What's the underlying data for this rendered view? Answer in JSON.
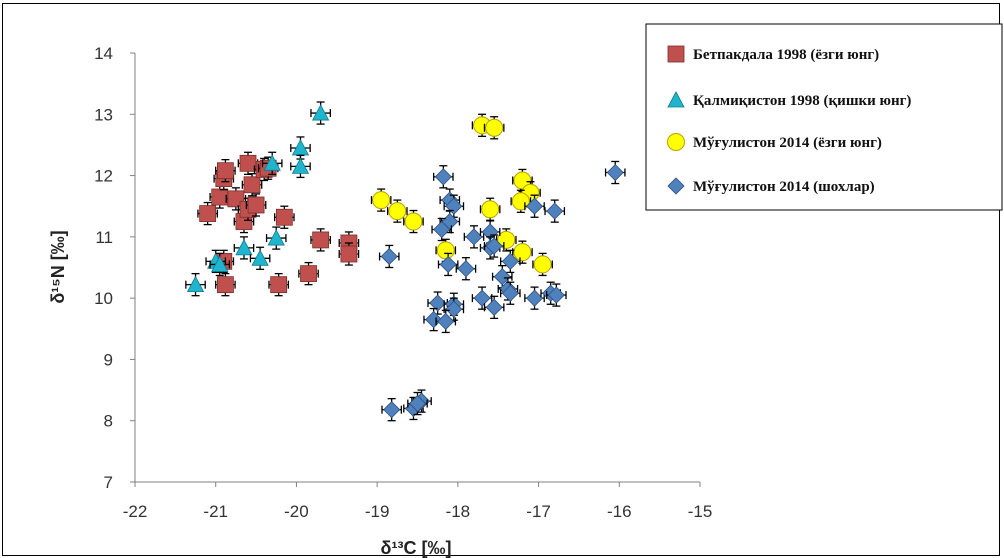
{
  "chart_data": {
    "type": "scatter",
    "xlabel": "δ¹³C [‰]",
    "ylabel": "δ¹⁵N [‰]",
    "xlim": [
      -22,
      -15
    ],
    "ylim": [
      7,
      14
    ],
    "xticks": [
      -22,
      -21,
      -20,
      -19,
      -18,
      -17,
      -16,
      -15
    ],
    "yticks": [
      7,
      8,
      9,
      10,
      11,
      12,
      13,
      14
    ],
    "grid": false,
    "legend": "top-right",
    "error_bars": true,
    "series": [
      {
        "name": "Бетпакдала 1998 (ёзги юнг)",
        "marker": "square",
        "color": "#C0504D",
        "points": [
          [
            -21.1,
            11.38
          ],
          [
            -20.95,
            11.65
          ],
          [
            -20.9,
            11.95
          ],
          [
            -20.88,
            12.08
          ],
          [
            -20.75,
            11.62
          ],
          [
            -20.65,
            11.25
          ],
          [
            -20.6,
            11.45
          ],
          [
            -20.6,
            12.2
          ],
          [
            -20.55,
            11.85
          ],
          [
            -20.5,
            11.52
          ],
          [
            -20.4,
            12.1
          ],
          [
            -20.35,
            12.12
          ],
          [
            -20.15,
            11.32
          ],
          [
            -20.9,
            10.6
          ],
          [
            -20.88,
            10.22
          ],
          [
            -20.22,
            10.22
          ],
          [
            -19.85,
            10.4
          ],
          [
            -19.7,
            10.95
          ],
          [
            -19.35,
            10.9
          ],
          [
            -19.35,
            10.72
          ]
        ]
      },
      {
        "name": "Қалмиқистон 1998 (қишки юнг)",
        "marker": "triangle",
        "color": "#1FB5CF",
        "points": [
          [
            -21.25,
            10.22
          ],
          [
            -21.0,
            10.6
          ],
          [
            -20.95,
            10.55
          ],
          [
            -20.65,
            10.82
          ],
          [
            -20.45,
            10.65
          ],
          [
            -20.25,
            10.98
          ],
          [
            -20.3,
            12.2
          ],
          [
            -19.95,
            12.45
          ],
          [
            -19.95,
            12.15
          ],
          [
            -19.7,
            13.02
          ]
        ]
      },
      {
        "name": "Мўғулистон 2014 (ёзги юнг)",
        "marker": "circle",
        "color": "#FFFF00",
        "points": [
          [
            -18.95,
            11.6
          ],
          [
            -18.75,
            11.42
          ],
          [
            -18.55,
            11.25
          ],
          [
            -18.15,
            10.78
          ],
          [
            -17.7,
            12.82
          ],
          [
            -17.55,
            12.78
          ],
          [
            -17.6,
            11.45
          ],
          [
            -17.4,
            10.95
          ],
          [
            -17.2,
            10.75
          ],
          [
            -17.2,
            11.92
          ],
          [
            -17.1,
            11.72
          ],
          [
            -17.22,
            11.58
          ],
          [
            -16.95,
            10.55
          ]
        ]
      },
      {
        "name": "Мўғулистон 2014 (шохлар)",
        "marker": "diamond",
        "color": "#4F81BD",
        "points": [
          [
            -18.18,
            11.98
          ],
          [
            -18.1,
            11.6
          ],
          [
            -18.05,
            11.5
          ],
          [
            -18.1,
            11.25
          ],
          [
            -18.2,
            11.12
          ],
          [
            -17.8,
            11.0
          ],
          [
            -17.6,
            11.08
          ],
          [
            -17.6,
            10.82
          ],
          [
            -17.55,
            10.85
          ],
          [
            -17.35,
            10.6
          ],
          [
            -17.9,
            10.48
          ],
          [
            -18.12,
            10.55
          ],
          [
            -17.45,
            10.35
          ],
          [
            -17.38,
            10.15
          ],
          [
            -17.35,
            10.08
          ],
          [
            -17.7,
            10.0
          ],
          [
            -17.55,
            9.85
          ],
          [
            -18.25,
            9.92
          ],
          [
            -18.05,
            9.9
          ],
          [
            -18.05,
            9.82
          ],
          [
            -18.3,
            9.65
          ],
          [
            -18.15,
            9.62
          ],
          [
            -17.05,
            10.0
          ],
          [
            -16.85,
            10.08
          ],
          [
            -16.78,
            10.05
          ],
          [
            -17.05,
            11.5
          ],
          [
            -16.8,
            11.42
          ],
          [
            -16.05,
            12.05
          ],
          [
            -18.85,
            10.68
          ],
          [
            -18.82,
            8.18
          ],
          [
            -18.55,
            8.2
          ],
          [
            -18.45,
            8.32
          ],
          [
            -18.5,
            8.28
          ]
        ]
      }
    ]
  }
}
